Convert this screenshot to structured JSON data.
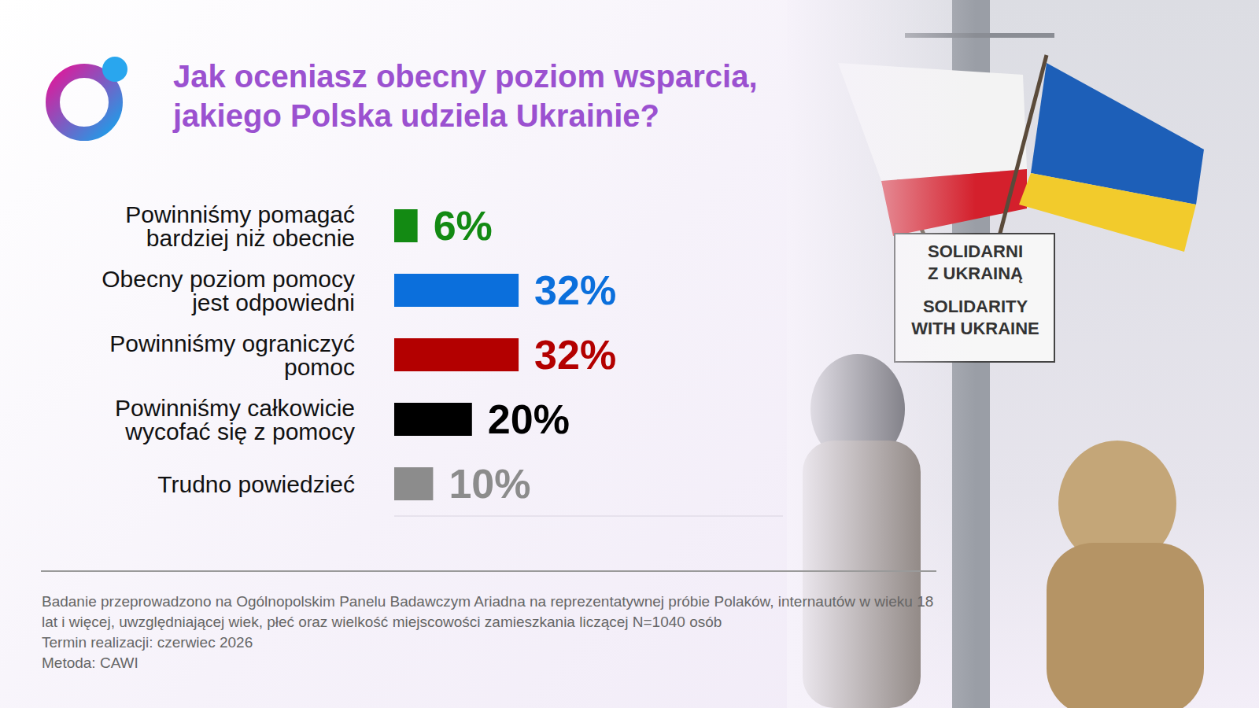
{
  "chart_data": {
    "type": "bar",
    "orientation": "horizontal",
    "title": "Jak oceniasz obecny poziom wsparcia, jakiego Polska udziela Ukrainie?",
    "categories": [
      "Powinniśmy pomagać bardziej niż obecnie",
      "Obecny poziom pomocy jest odpowiedni",
      "Powinniśmy ograniczyć pomoc",
      "Powinniśmy całkowicie wycofać się z pomocy",
      "Trudno powiedzieć"
    ],
    "values": [
      6,
      32,
      32,
      20,
      10
    ],
    "value_labels": [
      "6%",
      "32%",
      "32%",
      "20%",
      "10%"
    ],
    "colors": [
      "#138a13",
      "#0b6fdc",
      "#b30000",
      "#000000",
      "#8c8c8c"
    ],
    "xlim": [
      0,
      100
    ],
    "data_labels": true,
    "tick_labels": "y",
    "grid": false,
    "annotations": [
      "Badanie przeprowadzono na Ogólnopolskim Panelu Badawczym Ariadna na reprezentatywnej próbie Polaków, internautów w wieku 18 lat i więcej, uwzględniającej wiek, płeć oraz wielkość miejscowości zamieszkania liczącej N=1040 osób",
      "Termin realizacji: czerwiec 2026",
      "Metoda: CAWI",
      "SOLIDARNI Z UKRAINĄ",
      "SOLIDARITY WITH UKRAINE"
    ]
  }
}
